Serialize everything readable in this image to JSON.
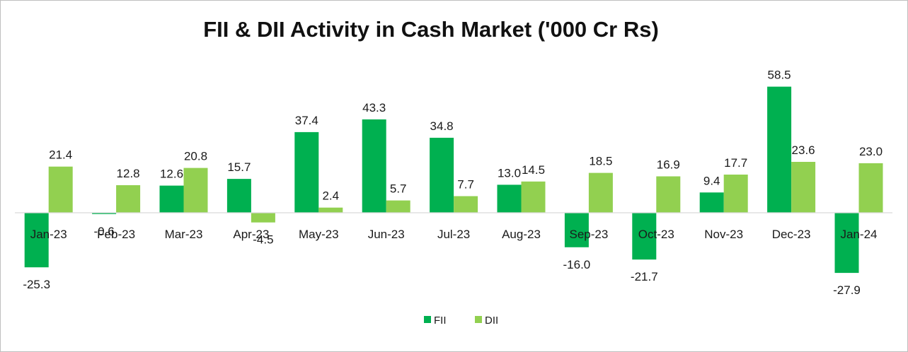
{
  "chart_data": {
    "type": "bar",
    "title": "FII & DII Activity in Cash Market ('000 Cr Rs)",
    "xlabel": "",
    "ylabel": "",
    "grid": false,
    "legend_position": "bottom-center",
    "ylim": [
      -35,
      70
    ],
    "categories": [
      "Jan-23",
      "Feb-23",
      "Mar-23",
      "Apr-23",
      "May-23",
      "Jun-23",
      "Jul-23",
      "Aug-23",
      "Sep-23",
      "Oct-23",
      "Nov-23",
      "Dec-23",
      "Jan-24"
    ],
    "series": [
      {
        "name": "FII",
        "color": "#00b050",
        "values": [
          -25.3,
          -0.6,
          12.6,
          15.7,
          37.4,
          43.3,
          34.8,
          13.0,
          -16.0,
          -21.7,
          9.4,
          58.5,
          -27.9
        ],
        "labels": [
          "-25.3",
          "-0.6",
          "12.6",
          "15.7",
          "37.4",
          "43.3",
          "34.8",
          "13.0",
          "-16.0",
          "-21.7",
          "9.4",
          "58.5",
          "-27.9"
        ]
      },
      {
        "name": "DII",
        "color": "#92d050",
        "values": [
          21.4,
          12.8,
          20.8,
          -4.5,
          2.4,
          5.7,
          7.7,
          14.5,
          18.5,
          16.9,
          17.7,
          23.6,
          23.0
        ],
        "labels": [
          "21.4",
          "12.8",
          "20.8",
          "-4.5",
          "2.4",
          "5.7",
          "7.7",
          "14.5",
          "18.5",
          "16.9",
          "17.7",
          "23.6",
          "23.0"
        ]
      }
    ]
  }
}
